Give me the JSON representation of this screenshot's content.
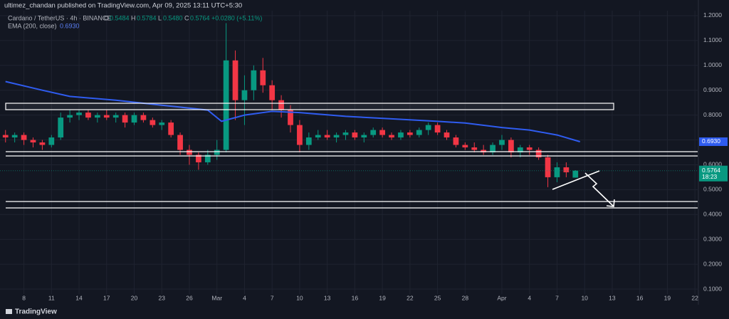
{
  "header": "ultimez_chandan published on TradingView.com, Apr 09, 2025 13:11 UTC+5:30",
  "legend": {
    "symbol": "Cardano / TetherUS · 4h · BINANCE",
    "open_key": "O",
    "open": "0.5484",
    "high_key": "H",
    "high": "0.5784",
    "low_key": "L",
    "low": "0.5480",
    "close_key": "C",
    "close": "0.5764",
    "change": "+0.0280 (+5.11%)"
  },
  "chart_data": {
    "type": "candlestick",
    "up_color": "#089981",
    "down_color": "#f23645",
    "x": [
      -2,
      -1,
      0,
      1,
      2,
      3,
      4,
      5,
      6,
      7,
      8,
      9,
      10,
      11,
      12,
      13,
      14,
      15,
      16,
      17,
      18,
      19,
      20,
      21,
      22,
      23,
      24,
      25,
      26,
      27,
      28,
      29,
      30,
      31,
      32,
      33,
      34,
      35,
      36,
      37,
      38,
      39,
      40,
      41,
      42,
      43,
      44,
      45,
      46,
      47,
      48,
      49,
      50,
      51,
      52,
      53,
      54,
      55,
      56,
      57,
      58,
      59,
      60
    ],
    "open": [
      0.72,
      0.71,
      0.72,
      0.7,
      0.69,
      0.68,
      0.71,
      0.79,
      0.8,
      0.81,
      0.79,
      0.8,
      0.79,
      0.8,
      0.77,
      0.8,
      0.78,
      0.76,
      0.77,
      0.72,
      0.66,
      0.64,
      0.61,
      0.64,
      0.66,
      1.02,
      0.86,
      0.9,
      0.98,
      0.92,
      0.86,
      0.82,
      0.76,
      0.68,
      0.71,
      0.72,
      0.71,
      0.72,
      0.73,
      0.71,
      0.72,
      0.74,
      0.72,
      0.71,
      0.73,
      0.72,
      0.74,
      0.76,
      0.73,
      0.71,
      0.68,
      0.67,
      0.66,
      0.65,
      0.68,
      0.7,
      0.65,
      0.67,
      0.66,
      0.63,
      0.55,
      0.59,
      0.5484
    ],
    "high": [
      0.74,
      0.73,
      0.73,
      0.71,
      0.7,
      0.72,
      0.81,
      0.82,
      0.82,
      0.82,
      0.81,
      0.82,
      0.81,
      0.81,
      0.81,
      0.81,
      0.79,
      0.78,
      0.78,
      0.73,
      0.68,
      0.65,
      0.66,
      0.7,
      1.17,
      1.06,
      0.96,
      1.0,
      1.03,
      0.94,
      0.88,
      0.84,
      0.78,
      0.73,
      0.74,
      0.74,
      0.73,
      0.74,
      0.74,
      0.73,
      0.75,
      0.75,
      0.73,
      0.74,
      0.74,
      0.75,
      0.77,
      0.77,
      0.74,
      0.72,
      0.69,
      0.69,
      0.68,
      0.69,
      0.72,
      0.71,
      0.68,
      0.68,
      0.67,
      0.64,
      0.61,
      0.61,
      0.5784
    ],
    "low": [
      0.69,
      0.69,
      0.68,
      0.67,
      0.66,
      0.67,
      0.7,
      0.77,
      0.78,
      0.78,
      0.77,
      0.78,
      0.77,
      0.75,
      0.76,
      0.77,
      0.75,
      0.74,
      0.71,
      0.64,
      0.6,
      0.58,
      0.6,
      0.62,
      0.65,
      0.78,
      0.76,
      0.86,
      0.89,
      0.82,
      0.79,
      0.73,
      0.65,
      0.66,
      0.7,
      0.7,
      0.69,
      0.7,
      0.7,
      0.69,
      0.71,
      0.71,
      0.7,
      0.7,
      0.71,
      0.71,
      0.72,
      0.72,
      0.7,
      0.67,
      0.66,
      0.65,
      0.64,
      0.64,
      0.66,
      0.63,
      0.63,
      0.64,
      0.62,
      0.51,
      0.53,
      0.55,
      0.548
    ],
    "close": [
      0.71,
      0.72,
      0.7,
      0.69,
      0.68,
      0.71,
      0.79,
      0.8,
      0.81,
      0.79,
      0.8,
      0.79,
      0.8,
      0.77,
      0.8,
      0.78,
      0.76,
      0.77,
      0.72,
      0.66,
      0.64,
      0.61,
      0.64,
      0.66,
      1.02,
      0.86,
      0.9,
      0.98,
      0.92,
      0.86,
      0.82,
      0.76,
      0.68,
      0.71,
      0.72,
      0.71,
      0.72,
      0.73,
      0.71,
      0.72,
      0.74,
      0.72,
      0.71,
      0.73,
      0.72,
      0.74,
      0.76,
      0.73,
      0.71,
      0.68,
      0.67,
      0.66,
      0.65,
      0.68,
      0.7,
      0.65,
      0.67,
      0.66,
      0.63,
      0.55,
      0.59,
      0.57,
      0.5764
    ],
    "countdown": "18:23",
    "ema": {
      "name": "EMA (200, close)",
      "color": "#2f5cf0",
      "last_label": "0.6930",
      "x": [
        -2,
        2,
        5,
        10,
        15,
        20,
        21.5,
        24,
        27,
        30,
        35,
        40,
        45,
        48,
        52,
        55,
        58,
        60.5
      ],
      "values": [
        0.935,
        0.9,
        0.875,
        0.86,
        0.84,
        0.82,
        0.775,
        0.8,
        0.815,
        0.81,
        0.795,
        0.785,
        0.775,
        0.768,
        0.75,
        0.74,
        0.72,
        0.693
      ]
    },
    "xlim": [
      -2.6,
      73.3
    ],
    "xticks": [
      {
        "value": 0,
        "label": "8"
      },
      {
        "value": 3,
        "label": "11"
      },
      {
        "value": 6,
        "label": "14"
      },
      {
        "value": 9,
        "label": "17"
      },
      {
        "value": 12,
        "label": "20"
      },
      {
        "value": 15,
        "label": "23"
      },
      {
        "value": 18,
        "label": "26"
      },
      {
        "value": 21,
        "label": "Mar"
      },
      {
        "value": 24,
        "label": "4"
      },
      {
        "value": 27,
        "label": "7"
      },
      {
        "value": 30,
        "label": "10"
      },
      {
        "value": 33,
        "label": "13"
      },
      {
        "value": 36,
        "label": "16"
      },
      {
        "value": 39,
        "label": "19"
      },
      {
        "value": 42,
        "label": "22"
      },
      {
        "value": 45,
        "label": "25"
      },
      {
        "value": 48,
        "label": "28"
      },
      {
        "value": 52,
        "label": "Apr"
      },
      {
        "value": 55,
        "label": "4"
      },
      {
        "value": 58,
        "label": "7"
      },
      {
        "value": 61,
        "label": "10"
      },
      {
        "value": 64,
        "label": "13"
      },
      {
        "value": 67,
        "label": "16"
      },
      {
        "value": 70,
        "label": "19"
      },
      {
        "value": 73,
        "label": "22"
      }
    ],
    "ylim": [
      0.08,
      1.22
    ],
    "yticks": [
      {
        "value": 1.2,
        "label": "1.2000"
      },
      {
        "value": 1.1,
        "label": "1.1000"
      },
      {
        "value": 1.0,
        "label": "1.0000"
      },
      {
        "value": 0.9,
        "label": "0.9000"
      },
      {
        "value": 0.8,
        "label": "0.8000"
      },
      {
        "value": 0.7,
        "label": "0.7000"
      },
      {
        "value": 0.6,
        "label": "0.6000"
      },
      {
        "value": 0.5,
        "label": "0.5000"
      },
      {
        "value": 0.4,
        "label": "0.4000"
      },
      {
        "value": 0.3,
        "label": "0.3000"
      },
      {
        "value": 0.2,
        "label": "0.2000"
      },
      {
        "value": 0.1,
        "label": "0.1000"
      }
    ],
    "grid": true
  },
  "footer": "TradingView"
}
